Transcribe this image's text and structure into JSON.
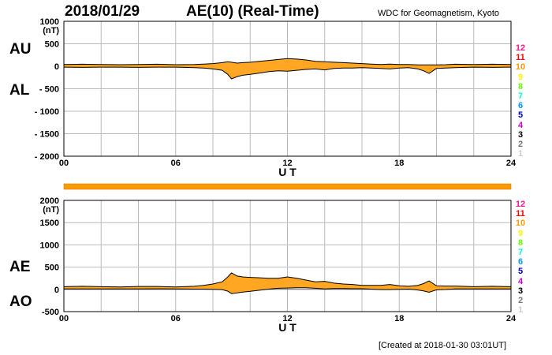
{
  "header": {
    "date": "2018/01/29",
    "title": "AE(10) (Real-Time)",
    "institution": "WDC for Geomagnetism, Kyoto"
  },
  "footer": {
    "created": "[Created at 2018-01-30 03:01UT]"
  },
  "labels": {
    "au": "AU",
    "al": "AL",
    "ae": "AE",
    "ao": "AO"
  },
  "legend": {
    "items": [
      {
        "label": "12",
        "color": "#ff1493"
      },
      {
        "label": "11",
        "color": "#ff0000"
      },
      {
        "label": "10",
        "color": "#ff9900"
      },
      {
        "label": "9",
        "color": "#ffff00"
      },
      {
        "label": "8",
        "color": "#66ff00"
      },
      {
        "label": "7",
        "color": "#00ffcc"
      },
      {
        "label": "6",
        "color": "#0099ff"
      },
      {
        "label": "5",
        "color": "#0000cc"
      },
      {
        "label": "4",
        "color": "#cc00cc"
      },
      {
        "label": "3",
        "color": "#000000"
      },
      {
        "label": "2",
        "color": "#777777"
      },
      {
        "label": "1",
        "color": "#cccccc"
      }
    ]
  },
  "colors": {
    "fill": "#ffa722",
    "line": "#000000",
    "grid": "#bbbbbb",
    "status_bar": "#ff9900"
  },
  "chart_data": [
    {
      "type": "area",
      "ylim": [
        -2000,
        1000
      ],
      "unit_label": "(nT)",
      "yticks": [
        1000,
        500,
        0,
        -500,
        -1000,
        -1500,
        -2000
      ],
      "ytick_labels": [
        "1000",
        "500",
        "0",
        "- 500",
        "- 1000",
        "- 1500",
        "- 2000"
      ],
      "xticks": [
        0,
        6,
        12,
        18,
        24
      ],
      "xtick_labels": [
        "00",
        "06",
        "12",
        "18",
        "24"
      ],
      "xlabel": "U T",
      "xlim": [
        0,
        24
      ],
      "grid": true,
      "x": [
        0,
        1,
        2,
        3,
        4,
        5,
        6,
        7,
        7.5,
        8,
        8.5,
        8.8,
        9,
        9.3,
        9.6,
        10,
        10.5,
        11,
        11.5,
        12,
        12.5,
        13,
        13.5,
        14,
        14.5,
        15,
        15.5,
        16,
        16.5,
        17,
        17.5,
        18,
        18.5,
        19,
        19.3,
        19.6,
        20,
        20.5,
        21,
        22,
        23,
        24
      ],
      "series": [
        {
          "name": "AU",
          "values": [
            40,
            45,
            40,
            35,
            40,
            45,
            35,
            40,
            50,
            60,
            80,
            100,
            90,
            70,
            80,
            90,
            110,
            130,
            150,
            170,
            160,
            140,
            110,
            100,
            90,
            80,
            70,
            60,
            50,
            40,
            50,
            40,
            40,
            30,
            30,
            30,
            30,
            35,
            45,
            40,
            45,
            40
          ]
        },
        {
          "name": "AL",
          "values": [
            -20,
            -25,
            -20,
            -20,
            -25,
            -20,
            -20,
            -30,
            -40,
            -60,
            -90,
            -180,
            -280,
            -230,
            -200,
            -180,
            -150,
            -120,
            -100,
            -110,
            -90,
            -70,
            -60,
            -80,
            -50,
            -40,
            -40,
            -30,
            -40,
            -50,
            -60,
            -40,
            -30,
            -60,
            -100,
            -160,
            -50,
            -40,
            -30,
            -20,
            -25,
            -20
          ]
        }
      ]
    },
    {
      "type": "area",
      "ylim": [
        -500,
        2000
      ],
      "unit_label": "(nT)",
      "yticks": [
        2000,
        1500,
        1000,
        500,
        0,
        -500
      ],
      "ytick_labels": [
        "2000",
        "1500",
        "1000",
        "500",
        "0",
        "-500"
      ],
      "xticks": [
        0,
        6,
        12,
        18,
        24
      ],
      "xtick_labels": [
        "00",
        "06",
        "12",
        "18",
        "24"
      ],
      "xlabel": "U T",
      "xlim": [
        0,
        24
      ],
      "grid": true,
      "x": [
        0,
        1,
        2,
        3,
        4,
        5,
        6,
        7,
        7.5,
        8,
        8.5,
        8.8,
        9,
        9.3,
        9.6,
        10,
        10.5,
        11,
        11.5,
        12,
        12.5,
        13,
        13.5,
        14,
        14.5,
        15,
        15.5,
        16,
        16.5,
        17,
        17.5,
        18,
        18.5,
        19,
        19.3,
        19.6,
        20,
        20.5,
        21,
        22,
        23,
        24
      ],
      "series": [
        {
          "name": "AE",
          "values": [
            60,
            70,
            60,
            55,
            65,
            65,
            55,
            70,
            90,
            120,
            170,
            280,
            370,
            300,
            280,
            270,
            260,
            250,
            250,
            280,
            250,
            210,
            170,
            180,
            140,
            120,
            110,
            90,
            90,
            90,
            110,
            80,
            70,
            90,
            130,
            190,
            80,
            75,
            75,
            60,
            70,
            60
          ]
        },
        {
          "name": "AO",
          "values": [
            10,
            10,
            10,
            8,
            8,
            12,
            8,
            5,
            5,
            0,
            -5,
            -40,
            -95,
            -80,
            -60,
            -45,
            -20,
            5,
            25,
            30,
            35,
            35,
            25,
            10,
            20,
            20,
            15,
            15,
            5,
            -5,
            -5,
            0,
            5,
            -15,
            -35,
            -65,
            -10,
            -3,
            8,
            10,
            10,
            10
          ]
        }
      ]
    }
  ]
}
